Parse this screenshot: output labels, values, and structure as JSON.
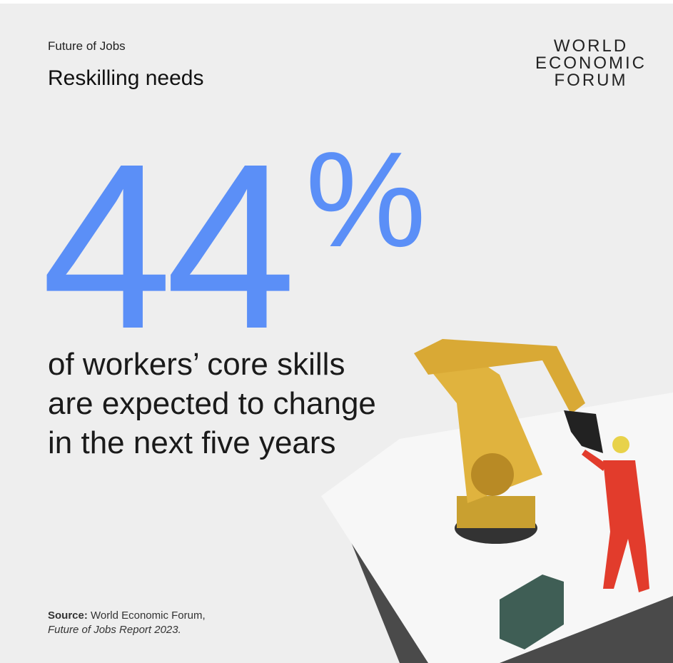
{
  "header": {
    "kicker": "Future of Jobs",
    "title": "Reskilling needs"
  },
  "logo": {
    "lines": [
      "WORLD",
      "ECONOMIC",
      "FORUM"
    ]
  },
  "stat": {
    "number": "44",
    "unit": "%"
  },
  "description": {
    "lines": [
      "of workers’ core skills",
      "are expected to change",
      "in the next five years"
    ]
  },
  "source": {
    "label": "Source:",
    "text": "World Economic Forum,",
    "report": "Future of Jobs Report 2023."
  }
}
